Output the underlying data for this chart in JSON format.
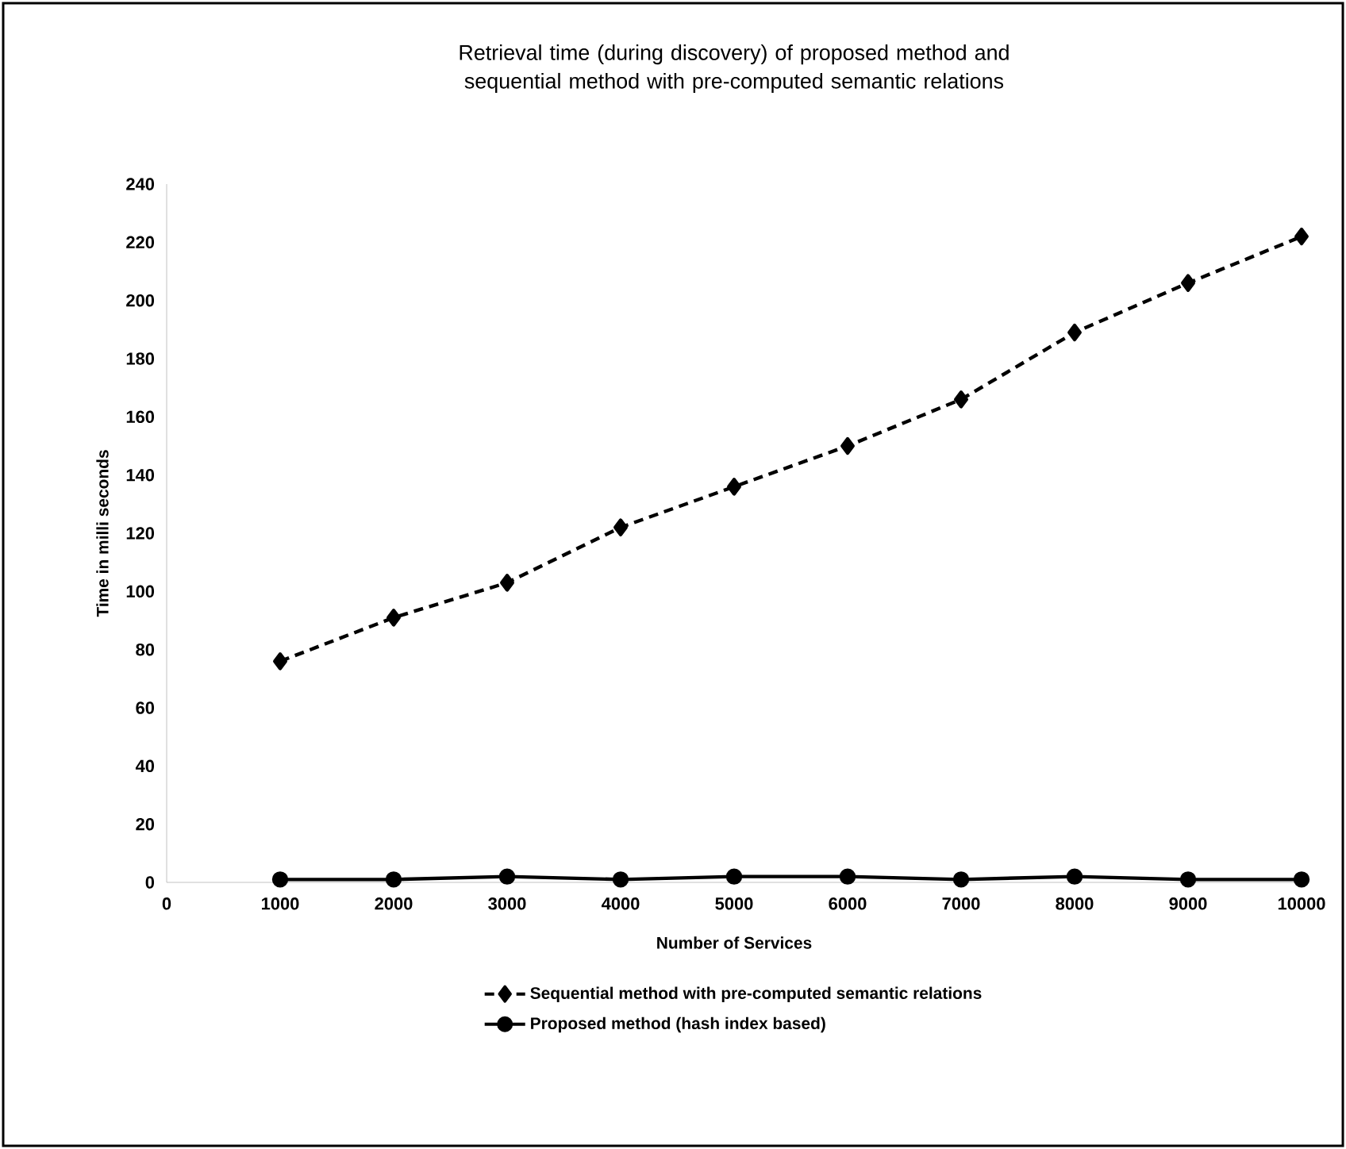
{
  "chart_data": {
    "type": "line",
    "title": "Retrieval time (during discovery) of proposed method and sequential method with pre-computed semantic relations",
    "xlabel": "Number of Services",
    "ylabel": "Time in milli seconds",
    "x": [
      1000,
      2000,
      3000,
      4000,
      5000,
      6000,
      7000,
      8000,
      9000,
      10000
    ],
    "series": [
      {
        "name": "Sequential method with pre-computed semantic relations",
        "color": "#000000",
        "marker": "diamond",
        "line_style": "dashed",
        "values": [
          76,
          91,
          103,
          122,
          136,
          150,
          166,
          189,
          206,
          222
        ]
      },
      {
        "name": "Proposed method (hash index based)",
        "color": "#000000",
        "marker": "circle",
        "line_style": "solid",
        "values": [
          1,
          1,
          2,
          1,
          2,
          2,
          1,
          2,
          1,
          1
        ]
      }
    ],
    "xlim": [
      0,
      10000
    ],
    "xticks": [
      0,
      1000,
      2000,
      3000,
      4000,
      5000,
      6000,
      7000,
      8000,
      9000,
      10000
    ],
    "ylim": [
      0,
      240
    ],
    "yticks": [
      0,
      20,
      40,
      60,
      80,
      100,
      120,
      140,
      160,
      180,
      200,
      220,
      240
    ],
    "grid": false,
    "legend": "bottom"
  }
}
